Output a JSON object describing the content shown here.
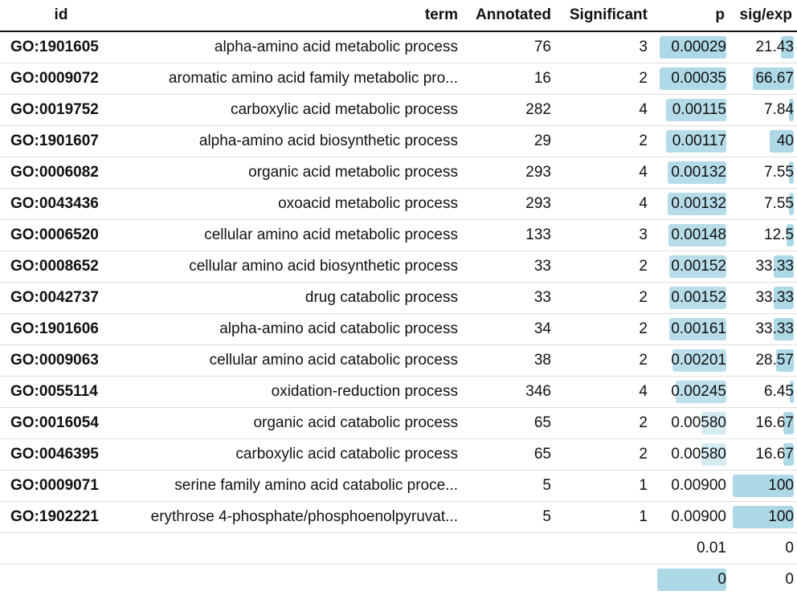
{
  "chart_data": {
    "type": "table",
    "columns": [
      "id",
      "term",
      "Annotated",
      "Significant",
      "p",
      "sig/exp"
    ],
    "p_bar_range": [
      0,
      0.009
    ],
    "sigexp_bar_range": [
      0,
      100
    ],
    "rows": [
      {
        "id": "GO:1901605",
        "term": "alpha-amino acid metabolic process",
        "annotated": "76",
        "significant": "3",
        "p": "0.00029",
        "sigexp": "21.43",
        "p_value": 0.00029,
        "sigexp_value": 21.43
      },
      {
        "id": "GO:0009072",
        "term": "aromatic amino acid family metabolic pro...",
        "annotated": "16",
        "significant": "2",
        "p": "0.00035",
        "sigexp": "66.67",
        "p_value": 0.00035,
        "sigexp_value": 66.67
      },
      {
        "id": "GO:0019752",
        "term": "carboxylic acid metabolic process",
        "annotated": "282",
        "significant": "4",
        "p": "0.00115",
        "sigexp": "7.84",
        "p_value": 0.00115,
        "sigexp_value": 7.84
      },
      {
        "id": "GO:1901607",
        "term": "alpha-amino acid biosynthetic process",
        "annotated": "29",
        "significant": "2",
        "p": "0.00117",
        "sigexp": "40",
        "p_value": 0.00117,
        "sigexp_value": 40
      },
      {
        "id": "GO:0006082",
        "term": "organic acid metabolic process",
        "annotated": "293",
        "significant": "4",
        "p": "0.00132",
        "sigexp": "7.55",
        "p_value": 0.00132,
        "sigexp_value": 7.55
      },
      {
        "id": "GO:0043436",
        "term": "oxoacid metabolic process",
        "annotated": "293",
        "significant": "4",
        "p": "0.00132",
        "sigexp": "7.55",
        "p_value": 0.00132,
        "sigexp_value": 7.55
      },
      {
        "id": "GO:0006520",
        "term": "cellular amino acid metabolic process",
        "annotated": "133",
        "significant": "3",
        "p": "0.00148",
        "sigexp": "12.5",
        "p_value": 0.00148,
        "sigexp_value": 12.5
      },
      {
        "id": "GO:0008652",
        "term": "cellular amino acid biosynthetic process",
        "annotated": "33",
        "significant": "2",
        "p": "0.00152",
        "sigexp": "33.33",
        "p_value": 0.00152,
        "sigexp_value": 33.33
      },
      {
        "id": "GO:0042737",
        "term": "drug catabolic process",
        "annotated": "33",
        "significant": "2",
        "p": "0.00152",
        "sigexp": "33.33",
        "p_value": 0.00152,
        "sigexp_value": 33.33
      },
      {
        "id": "GO:1901606",
        "term": "alpha-amino acid catabolic process",
        "annotated": "34",
        "significant": "2",
        "p": "0.00161",
        "sigexp": "33.33",
        "p_value": 0.00161,
        "sigexp_value": 33.33
      },
      {
        "id": "GO:0009063",
        "term": "cellular amino acid catabolic process",
        "annotated": "38",
        "significant": "2",
        "p": "0.00201",
        "sigexp": "28.57",
        "p_value": 0.00201,
        "sigexp_value": 28.57
      },
      {
        "id": "GO:0055114",
        "term": "oxidation-reduction process",
        "annotated": "346",
        "significant": "4",
        "p": "0.00245",
        "sigexp": "6.45",
        "p_value": 0.00245,
        "sigexp_value": 6.45
      },
      {
        "id": "GO:0016054",
        "term": "organic acid catabolic process",
        "annotated": "65",
        "significant": "2",
        "p": "0.00580",
        "sigexp": "16.67",
        "p_value": 0.0058,
        "sigexp_value": 16.67
      },
      {
        "id": "GO:0046395",
        "term": "carboxylic acid catabolic process",
        "annotated": "65",
        "significant": "2",
        "p": "0.00580",
        "sigexp": "16.67",
        "p_value": 0.0058,
        "sigexp_value": 16.67
      },
      {
        "id": "GO:0009071",
        "term": "serine family amino acid catabolic proce...",
        "annotated": "5",
        "significant": "1",
        "p": "0.00900",
        "sigexp": "100",
        "p_value": 0.009,
        "sigexp_value": 100
      },
      {
        "id": "GO:1902221",
        "term": "erythrose 4-phosphate/phosphoenolpyruvat...",
        "annotated": "5",
        "significant": "1",
        "p": "0.00900",
        "sigexp": "100",
        "p_value": 0.009,
        "sigexp_value": 100
      },
      {
        "id": "",
        "term": "",
        "annotated": "",
        "significant": "",
        "p": "0.01",
        "sigexp": "0",
        "p_value": 0.01,
        "sigexp_value": 0
      },
      {
        "id": "",
        "term": "",
        "annotated": "",
        "significant": "",
        "p": "0",
        "sigexp": "0",
        "p_value": 0,
        "sigexp_value": 0
      }
    ]
  },
  "colors": {
    "bar": "#add8e6"
  }
}
